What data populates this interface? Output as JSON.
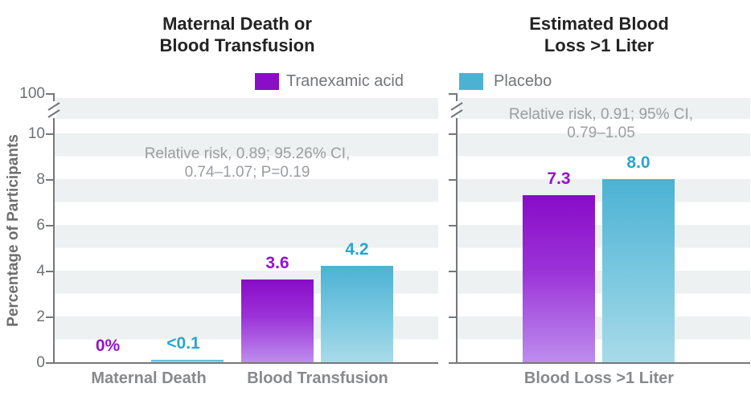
{
  "chart_data": {
    "type": "bar",
    "ylabel": "Percentage of Participants",
    "yticks": [
      0,
      2,
      4,
      6,
      8,
      10,
      100
    ],
    "y_tick_labels": [
      "0",
      "2",
      "4",
      "6",
      "8",
      "10",
      "100"
    ],
    "ylim": [
      0,
      100
    ],
    "axis_break": {
      "present": true,
      "between": [
        10,
        100
      ]
    },
    "grid": "alternating horizontal bands, 1 unit tall",
    "legend_position": "top center",
    "legend": [
      {
        "label": "Tranexamic acid",
        "color": "#8a0dc8"
      },
      {
        "label": "Placebo",
        "color": "#4cb2d4"
      }
    ],
    "colors": {
      "tranexamic_bar_top": "#880cc7",
      "tranexamic_bar_bottom": "#bd8ded",
      "placebo_bar_top": "#4cb2d4",
      "placebo_bar_bottom": "#a9dbe9",
      "tranexamic_value_label": "#9412d0",
      "placebo_value_label": "#2aa5cd",
      "axis": "#76777a",
      "band": "#edf1f2"
    },
    "panels": [
      {
        "title_lines": [
          "Maternal Death or",
          "Blood Transfusion"
        ],
        "annotation_lines": [
          "Relative risk, 0.89; 95.26% CI,",
          "0.74–1.07; P=0.19"
        ],
        "categories": [
          "Maternal Death",
          "Blood Transfusion"
        ],
        "series": [
          {
            "name": "Tranexamic acid",
            "values": [
              0,
              3.6
            ],
            "value_labels": [
              "0%",
              "3.6"
            ]
          },
          {
            "name": "Placebo",
            "values": [
              0.1,
              4.2
            ],
            "value_labels": [
              "<0.1",
              "4.2"
            ]
          }
        ]
      },
      {
        "title_lines": [
          "Estimated Blood",
          "Loss >1 Liter"
        ],
        "annotation_lines": [
          "Relative risk, 0.91; 95% CI,",
          "0.79–1.05"
        ],
        "categories": [
          "Blood Loss >1 Liter"
        ],
        "series": [
          {
            "name": "Tranexamic acid",
            "values": [
              7.3
            ],
            "value_labels": [
              "7.3"
            ]
          },
          {
            "name": "Placebo",
            "values": [
              8.0
            ],
            "value_labels": [
              "8.0"
            ]
          }
        ]
      }
    ]
  }
}
